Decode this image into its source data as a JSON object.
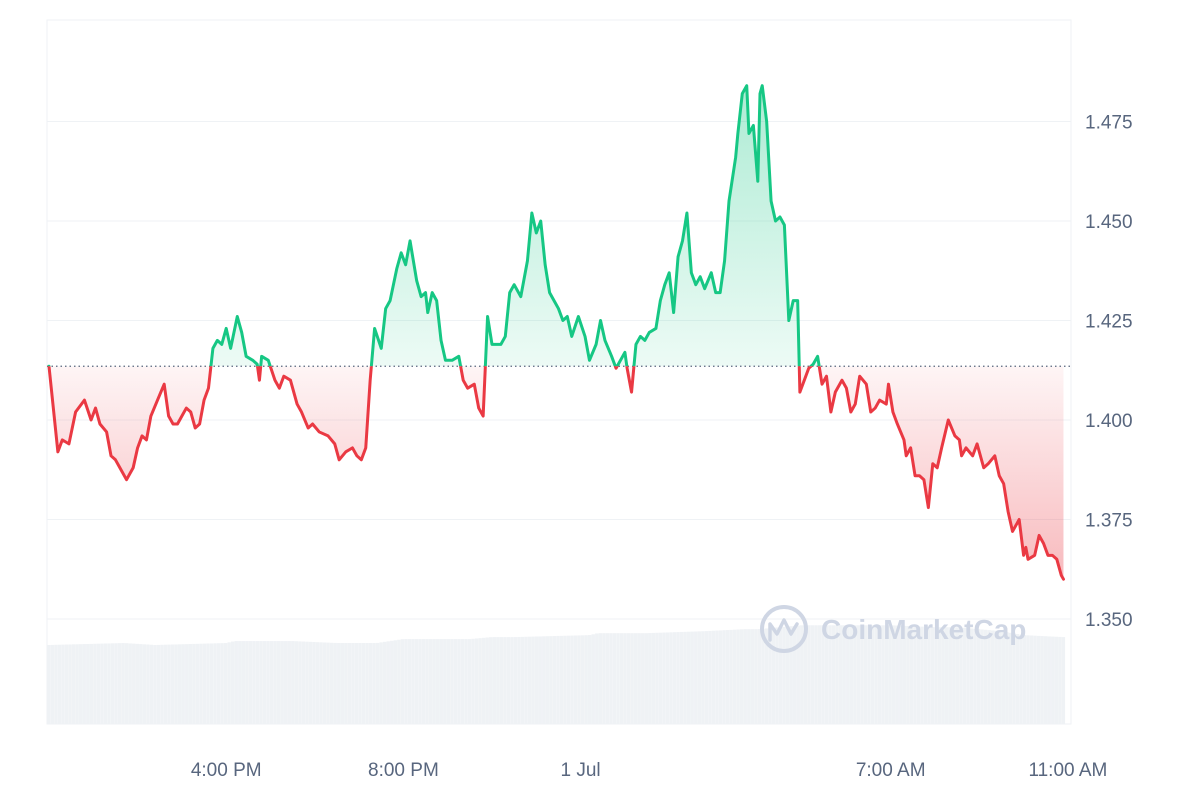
{
  "chart_data": {
    "type": "area",
    "baseline": 1.4135,
    "ylim": [
      1.325,
      1.5
    ],
    "y_ticks": [
      1.35,
      1.375,
      1.4,
      1.425,
      1.45,
      1.475
    ],
    "y_tick_labels": [
      "1.350",
      "1.375",
      "1.400",
      "1.425",
      "1.450",
      "1.475"
    ],
    "x_ticks": [
      {
        "label": "4:00 PM",
        "t": 4.0
      },
      {
        "label": "8:00 PM",
        "t": 8.0
      },
      {
        "label": "1 Jul",
        "t": 12.0
      },
      {
        "label": "7:00 AM",
        "t": 19.0
      },
      {
        "label": "11:00 AM",
        "t": 23.0
      }
    ],
    "colors": {
      "up": "#16c784",
      "down": "#ea3943",
      "grid": "#eff2f5",
      "baseline": "#58667e",
      "volume": "#eff2f5",
      "watermark": "#cfd6e4"
    },
    "series": [
      {
        "points": [
          [
            0.0,
            1.4135
          ],
          [
            0.2,
            1.392
          ],
          [
            0.3,
            1.395
          ],
          [
            0.45,
            1.394
          ],
          [
            0.6,
            1.402
          ],
          [
            0.8,
            1.405
          ],
          [
            0.95,
            1.4
          ],
          [
            1.05,
            1.403
          ],
          [
            1.15,
            1.399
          ],
          [
            1.3,
            1.397
          ],
          [
            1.4,
            1.391
          ],
          [
            1.5,
            1.39
          ],
          [
            1.6,
            1.388
          ],
          [
            1.75,
            1.385
          ],
          [
            1.9,
            1.388
          ],
          [
            2.0,
            1.393
          ],
          [
            2.1,
            1.396
          ],
          [
            2.2,
            1.395
          ],
          [
            2.3,
            1.401
          ],
          [
            2.45,
            1.405
          ],
          [
            2.6,
            1.409
          ],
          [
            2.7,
            1.401
          ],
          [
            2.8,
            1.399
          ],
          [
            2.9,
            1.399
          ],
          [
            3.0,
            1.401
          ],
          [
            3.1,
            1.403
          ],
          [
            3.2,
            1.402
          ],
          [
            3.3,
            1.398
          ],
          [
            3.4,
            1.399
          ],
          [
            3.5,
            1.405
          ],
          [
            3.6,
            1.408
          ],
          [
            3.7,
            1.418
          ],
          [
            3.8,
            1.42
          ],
          [
            3.9,
            1.419
          ],
          [
            4.0,
            1.423
          ],
          [
            4.1,
            1.418
          ],
          [
            4.25,
            1.426
          ],
          [
            4.35,
            1.422
          ],
          [
            4.45,
            1.416
          ],
          [
            4.6,
            1.415
          ],
          [
            4.7,
            1.414
          ],
          [
            4.75,
            1.41
          ],
          [
            4.8,
            1.416
          ],
          [
            4.95,
            1.415
          ],
          [
            5.1,
            1.41
          ],
          [
            5.2,
            1.408
          ],
          [
            5.3,
            1.411
          ],
          [
            5.45,
            1.41
          ],
          [
            5.6,
            1.404
          ],
          [
            5.7,
            1.402
          ],
          [
            5.85,
            1.398
          ],
          [
            5.95,
            1.399
          ],
          [
            6.1,
            1.397
          ],
          [
            6.3,
            1.396
          ],
          [
            6.45,
            1.394
          ],
          [
            6.55,
            1.39
          ],
          [
            6.7,
            1.392
          ],
          [
            6.85,
            1.393
          ],
          [
            6.95,
            1.391
          ],
          [
            7.05,
            1.39
          ],
          [
            7.15,
            1.393
          ],
          [
            7.25,
            1.41
          ],
          [
            7.35,
            1.423
          ],
          [
            7.5,
            1.418
          ],
          [
            7.6,
            1.428
          ],
          [
            7.7,
            1.43
          ],
          [
            7.85,
            1.438
          ],
          [
            7.95,
            1.442
          ],
          [
            8.05,
            1.439
          ],
          [
            8.15,
            1.445
          ],
          [
            8.3,
            1.435
          ],
          [
            8.4,
            1.431
          ],
          [
            8.5,
            1.432
          ],
          [
            8.55,
            1.427
          ],
          [
            8.65,
            1.432
          ],
          [
            8.75,
            1.43
          ],
          [
            8.85,
            1.42
          ],
          [
            8.95,
            1.415
          ],
          [
            9.1,
            1.415
          ],
          [
            9.25,
            1.416
          ],
          [
            9.35,
            1.41
          ],
          [
            9.45,
            1.408
          ],
          [
            9.6,
            1.409
          ],
          [
            9.7,
            1.403
          ],
          [
            9.8,
            1.401
          ],
          [
            9.9,
            1.426
          ],
          [
            10.0,
            1.419
          ],
          [
            10.2,
            1.419
          ],
          [
            10.3,
            1.421
          ],
          [
            10.4,
            1.432
          ],
          [
            10.5,
            1.434
          ],
          [
            10.65,
            1.431
          ],
          [
            10.8,
            1.44
          ],
          [
            10.9,
            1.452
          ],
          [
            11.0,
            1.447
          ],
          [
            11.1,
            1.45
          ],
          [
            11.2,
            1.439
          ],
          [
            11.3,
            1.432
          ],
          [
            11.4,
            1.43
          ],
          [
            11.5,
            1.428
          ],
          [
            11.6,
            1.425
          ],
          [
            11.7,
            1.426
          ],
          [
            11.8,
            1.421
          ],
          [
            11.95,
            1.426
          ],
          [
            12.1,
            1.421
          ],
          [
            12.2,
            1.415
          ],
          [
            12.35,
            1.419
          ],
          [
            12.45,
            1.425
          ],
          [
            12.55,
            1.42
          ],
          [
            12.7,
            1.416
          ],
          [
            12.8,
            1.413
          ],
          [
            12.9,
            1.415
          ],
          [
            13.0,
            1.417
          ],
          [
            13.05,
            1.413
          ],
          [
            13.15,
            1.407
          ],
          [
            13.25,
            1.419
          ],
          [
            13.35,
            1.421
          ],
          [
            13.45,
            1.42
          ],
          [
            13.55,
            1.422
          ],
          [
            13.7,
            1.423
          ],
          [
            13.8,
            1.43
          ],
          [
            13.9,
            1.434
          ],
          [
            14.0,
            1.437
          ],
          [
            14.1,
            1.427
          ],
          [
            14.2,
            1.441
          ],
          [
            14.3,
            1.445
          ],
          [
            14.4,
            1.452
          ],
          [
            14.5,
            1.437
          ],
          [
            14.6,
            1.434
          ],
          [
            14.7,
            1.436
          ],
          [
            14.8,
            1.433
          ],
          [
            14.95,
            1.437
          ],
          [
            15.05,
            1.432
          ],
          [
            15.15,
            1.432
          ],
          [
            15.25,
            1.44
          ],
          [
            15.35,
            1.455
          ],
          [
            15.5,
            1.466
          ],
          [
            15.55,
            1.472
          ],
          [
            15.65,
            1.482
          ],
          [
            15.75,
            1.484
          ],
          [
            15.8,
            1.472
          ],
          [
            15.9,
            1.474
          ],
          [
            16.0,
            1.46
          ],
          [
            16.05,
            1.482
          ],
          [
            16.1,
            1.484
          ],
          [
            16.2,
            1.475
          ],
          [
            16.3,
            1.455
          ],
          [
            16.4,
            1.45
          ],
          [
            16.5,
            1.451
          ],
          [
            16.6,
            1.449
          ],
          [
            16.7,
            1.425
          ],
          [
            16.8,
            1.43
          ],
          [
            16.9,
            1.43
          ],
          [
            16.95,
            1.407
          ],
          [
            17.05,
            1.41
          ],
          [
            17.15,
            1.413
          ],
          [
            17.25,
            1.414
          ],
          [
            17.35,
            1.416
          ],
          [
            17.45,
            1.409
          ],
          [
            17.55,
            1.411
          ],
          [
            17.65,
            1.402
          ],
          [
            17.75,
            1.407
          ],
          [
            17.9,
            1.41
          ],
          [
            18.0,
            1.408
          ],
          [
            18.1,
            1.402
          ],
          [
            18.2,
            1.404
          ],
          [
            18.3,
            1.411
          ],
          [
            18.45,
            1.409
          ],
          [
            18.55,
            1.402
          ],
          [
            18.65,
            1.403
          ],
          [
            18.75,
            1.405
          ],
          [
            18.9,
            1.404
          ],
          [
            18.95,
            1.409
          ],
          [
            19.05,
            1.402
          ],
          [
            19.15,
            1.399
          ],
          [
            19.3,
            1.395
          ],
          [
            19.35,
            1.391
          ],
          [
            19.45,
            1.393
          ],
          [
            19.55,
            1.386
          ],
          [
            19.65,
            1.386
          ],
          [
            19.75,
            1.385
          ],
          [
            19.85,
            1.378
          ],
          [
            19.95,
            1.389
          ],
          [
            20.05,
            1.388
          ],
          [
            20.15,
            1.393
          ],
          [
            20.3,
            1.4
          ],
          [
            20.45,
            1.396
          ],
          [
            20.55,
            1.395
          ],
          [
            20.6,
            1.391
          ],
          [
            20.7,
            1.393
          ],
          [
            20.85,
            1.391
          ],
          [
            20.95,
            1.394
          ],
          [
            21.1,
            1.388
          ],
          [
            21.2,
            1.389
          ],
          [
            21.35,
            1.391
          ],
          [
            21.45,
            1.386
          ],
          [
            21.55,
            1.384
          ],
          [
            21.65,
            1.377
          ],
          [
            21.75,
            1.372
          ],
          [
            21.9,
            1.375
          ],
          [
            22.0,
            1.366
          ],
          [
            22.05,
            1.368
          ],
          [
            22.1,
            1.365
          ],
          [
            22.25,
            1.366
          ],
          [
            22.35,
            1.371
          ],
          [
            22.45,
            1.369
          ],
          [
            22.55,
            1.366
          ],
          [
            22.65,
            1.366
          ],
          [
            22.75,
            1.365
          ],
          [
            22.85,
            1.361
          ],
          [
            22.9,
            1.36
          ]
        ]
      }
    ],
    "volume": {
      "ylim": [
        0,
        1
      ],
      "points": [
        [
          0.0,
          0.4
        ],
        [
          1.7,
          0.41
        ],
        [
          2.4,
          0.4
        ],
        [
          4.0,
          0.41
        ],
        [
          4.2,
          0.42
        ],
        [
          5.5,
          0.42
        ],
        [
          6.5,
          0.41
        ],
        [
          7.4,
          0.41
        ],
        [
          8.0,
          0.43
        ],
        [
          8.4,
          0.43
        ],
        [
          9.5,
          0.43
        ],
        [
          10.0,
          0.44
        ],
        [
          10.5,
          0.44
        ],
        [
          12.2,
          0.45
        ],
        [
          12.4,
          0.46
        ],
        [
          13.5,
          0.46
        ],
        [
          14.8,
          0.47
        ],
        [
          15.7,
          0.48
        ],
        [
          16.0,
          0.48
        ],
        [
          16.5,
          0.49
        ],
        [
          17.0,
          0.5
        ],
        [
          17.5,
          0.5
        ],
        [
          18.0,
          0.5
        ],
        [
          19.0,
          0.5
        ],
        [
          20.0,
          0.49
        ],
        [
          20.5,
          0.49
        ],
        [
          21.5,
          0.47
        ],
        [
          22.0,
          0.45
        ],
        [
          22.9,
          0.44
        ]
      ]
    }
  },
  "watermark": {
    "text": "CoinMarketCap"
  }
}
